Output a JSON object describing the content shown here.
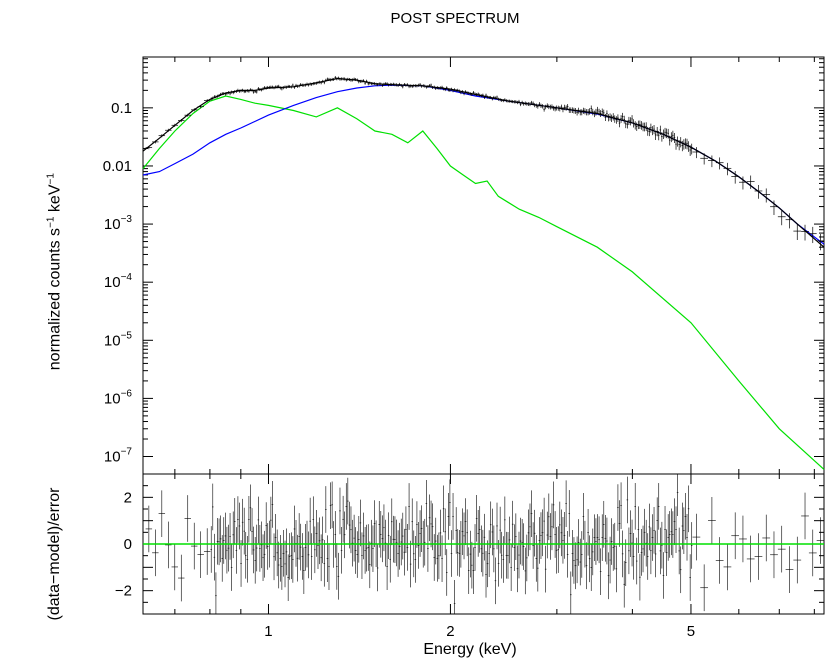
{
  "title": "POST SPECTRUM",
  "colors": {
    "data": "#000000",
    "model_total": "#000000",
    "component_soft": "#00e000",
    "component_hard": "#0000ff",
    "zero_line": "#00e000"
  },
  "chart_data": [
    {
      "type": "line",
      "panel": "top",
      "ylabel_text": "normalized counts s",
      "ylabel_sup1": "−1",
      "ylabel_mid": " keV",
      "ylabel_sup2": "−1",
      "x_scale": "log",
      "y_scale": "log",
      "xlim": [
        0.62,
        8.3
      ],
      "ylim": [
        5e-08,
        0.75
      ],
      "y_ticks": [
        {
          "v": 0.1,
          "base": "0.1",
          "exp": ""
        },
        {
          "v": 0.01,
          "base": "0.01",
          "exp": ""
        },
        {
          "v": 0.001,
          "base": "10",
          "exp": "−3"
        },
        {
          "v": 0.0001,
          "base": "10",
          "exp": "−4"
        },
        {
          "v": 1e-05,
          "base": "10",
          "exp": "−5"
        },
        {
          "v": 1e-06,
          "base": "10",
          "exp": "−6"
        },
        {
          "v": 1e-07,
          "base": "10",
          "exp": "−7"
        }
      ],
      "series": [
        {
          "role": "data_and_total_model",
          "x": [
            0.62,
            0.66,
            0.7,
            0.75,
            0.8,
            0.85,
            0.9,
            0.95,
            1.0,
            1.1,
            1.2,
            1.3,
            1.4,
            1.5,
            1.6,
            1.8,
            2.0,
            2.2,
            2.5,
            3.0,
            3.5,
            4.0,
            4.5,
            5.0,
            5.5,
            6.0,
            6.5,
            7.0,
            7.5,
            8.3
          ],
          "y": [
            0.018,
            0.03,
            0.05,
            0.09,
            0.14,
            0.18,
            0.2,
            0.2,
            0.22,
            0.23,
            0.27,
            0.32,
            0.3,
            0.26,
            0.25,
            0.24,
            0.21,
            0.17,
            0.13,
            0.1,
            0.08,
            0.055,
            0.035,
            0.021,
            0.012,
            0.0065,
            0.0035,
            0.0019,
            0.001,
            0.0004
          ]
        },
        {
          "role": "soft_component",
          "x": [
            0.62,
            0.66,
            0.7,
            0.75,
            0.8,
            0.85,
            0.9,
            0.95,
            1.0,
            1.1,
            1.2,
            1.3,
            1.4,
            1.5,
            1.6,
            1.7,
            1.8,
            1.9,
            2.0,
            2.1,
            2.2,
            2.3,
            2.4,
            2.6,
            2.8,
            3.0,
            3.5,
            4.0,
            5.0,
            6.0,
            7.0,
            8.3
          ],
          "y": [
            0.009,
            0.02,
            0.04,
            0.08,
            0.13,
            0.16,
            0.14,
            0.12,
            0.11,
            0.09,
            0.07,
            0.1,
            0.065,
            0.04,
            0.035,
            0.025,
            0.04,
            0.02,
            0.01,
            0.007,
            0.005,
            0.0055,
            0.003,
            0.0018,
            0.0013,
            0.0009,
            0.0004,
            0.00015,
            2e-05,
            2e-06,
            3e-07,
            6e-08
          ]
        },
        {
          "role": "hard_component",
          "x": [
            0.62,
            0.66,
            0.7,
            0.75,
            0.8,
            0.85,
            0.9,
            1.0,
            1.1,
            1.2,
            1.3,
            1.4,
            1.5,
            1.6,
            1.8,
            2.0,
            2.2,
            2.5,
            3.0,
            3.5,
            4.0,
            4.5,
            5.0,
            5.5,
            6.0,
            6.5,
            7.0,
            7.5,
            8.3
          ],
          "y": [
            0.007,
            0.008,
            0.011,
            0.016,
            0.025,
            0.035,
            0.045,
            0.075,
            0.11,
            0.15,
            0.19,
            0.22,
            0.24,
            0.245,
            0.24,
            0.2,
            0.16,
            0.13,
            0.1,
            0.078,
            0.055,
            0.035,
            0.021,
            0.012,
            0.0065,
            0.0035,
            0.0019,
            0.001,
            0.00045
          ]
        }
      ]
    },
    {
      "type": "scatter",
      "panel": "bottom",
      "ylabel": "(data−model)/error",
      "xlabel": "Energy (keV)",
      "x_scale": "log",
      "xlim": [
        0.62,
        8.3
      ],
      "ylim": [
        -3,
        3
      ],
      "x_ticks": [
        1,
        2,
        5
      ],
      "y_ticks": [
        2,
        0,
        -2
      ],
      "zero_line": 0
    }
  ]
}
